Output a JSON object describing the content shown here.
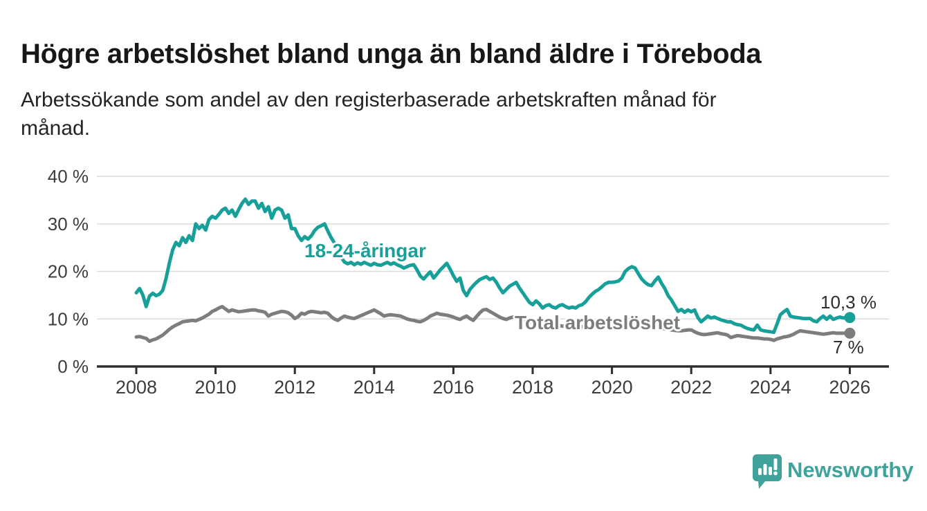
{
  "header": {
    "title": "Högre arbetslöshet bland unga än bland äldre i Töreboda",
    "subtitle_lines": [
      "Arbetssökande som andel av den registerbaserade arbetskraften månad för",
      "månad."
    ]
  },
  "colors": {
    "youth_line": "#17a099",
    "total_line": "#7d7d7d",
    "gridline": "#dcdcdc",
    "axis": "#2d2d2d",
    "tick_text": "#3c3c3c",
    "value_text": "#2d2d2d",
    "logo": "#3fa39c"
  },
  "branding": {
    "logo_text": "Newsworthy",
    "logo_icon": "bar-chart-speech-bubble-icon"
  },
  "chart_data": {
    "type": "line",
    "title": "Högre arbetslöshet bland unga än bland äldre i Töreboda",
    "subtitle": "Arbetssökande som andel av den registerbaserade arbetskraften månad för månad.",
    "x_unit": "month",
    "x_start_year": 2008,
    "x_end_year": 2026,
    "x_tick_years": [
      2008,
      2010,
      2012,
      2014,
      2016,
      2018,
      2020,
      2022,
      2024,
      2026
    ],
    "ylim": [
      0,
      42
    ],
    "grid": "horizontal",
    "legend_position": "inline-labels",
    "y_ticks": [
      {
        "value": 0,
        "label": "0 %"
      },
      {
        "value": 10,
        "label": "10 %"
      },
      {
        "value": 20,
        "label": "20 %"
      },
      {
        "value": 30,
        "label": "30 %"
      },
      {
        "value": 40,
        "label": "40 %"
      }
    ],
    "series": [
      {
        "name": "18-24-åringar",
        "color": "#17a099",
        "end_label": "10,3 %",
        "end_value": 10.3,
        "values": [
          15.5,
          16.4,
          15.0,
          12.6,
          14.8,
          15.4,
          14.9,
          15.2,
          16.0,
          18.5,
          21.7,
          24.5,
          26.1,
          25.4,
          27.1,
          26.1,
          27.5,
          26.5,
          30.0,
          29.0,
          29.7,
          28.7,
          30.9,
          31.6,
          31.2,
          32.0,
          32.9,
          33.3,
          32.2,
          32.9,
          31.6,
          33.0,
          34.3,
          35.2,
          34.1,
          34.8,
          34.8,
          33.3,
          34.3,
          32.6,
          33.6,
          31.2,
          32.9,
          33.3,
          32.9,
          31.2,
          31.9,
          29.0,
          29.0,
          27.5,
          26.5,
          27.3,
          26.8,
          27.5,
          28.6,
          29.3,
          29.6,
          30.0,
          28.5,
          27.1,
          26.0,
          24.5,
          23.0,
          22.0,
          21.6,
          21.9,
          21.4,
          21.8,
          21.5,
          21.9,
          21.6,
          21.3,
          21.7,
          21.4,
          21.3,
          21.6,
          21.9,
          21.5,
          21.8,
          21.4,
          21.1,
          20.7,
          21.0,
          21.3,
          21.4,
          20.3,
          19.0,
          18.4,
          19.2,
          19.9,
          18.6,
          19.4,
          20.3,
          21.0,
          21.7,
          20.5,
          19.1,
          17.9,
          18.6,
          16.0,
          14.9,
          16.2,
          17.0,
          17.7,
          18.3,
          18.6,
          18.9,
          18.3,
          18.6,
          17.7,
          16.5,
          15.5,
          16.2,
          16.9,
          17.3,
          17.7,
          16.5,
          15.5,
          14.5,
          13.5,
          13.0,
          13.8,
          13.2,
          12.3,
          12.8,
          13.0,
          12.5,
          12.3,
          12.8,
          13.0,
          12.6,
          12.3,
          12.5,
          12.3,
          12.8,
          13.0,
          13.6,
          14.5,
          15.2,
          15.8,
          16.2,
          16.8,
          17.4,
          17.7,
          17.7,
          17.8,
          18.0,
          18.6,
          20.0,
          20.6,
          21.0,
          20.7,
          19.5,
          18.4,
          17.7,
          17.2,
          17.0,
          18.0,
          18.8,
          17.5,
          16.4,
          14.9,
          14.0,
          12.8,
          11.6,
          12.0,
          11.4,
          11.9,
          11.5,
          11.9,
          10.3,
          9.4,
          10.0,
          10.6,
          10.2,
          10.4,
          10.1,
          9.8,
          9.6,
          9.4,
          9.4,
          9.0,
          8.8,
          8.7,
          8.3,
          8.0,
          7.8,
          7.7,
          8.7,
          7.7,
          7.5,
          7.4,
          7.3,
          7.2,
          9.0,
          10.9,
          11.5,
          12.0,
          10.6,
          10.4,
          10.3,
          10.2,
          10.1,
          10.1,
          10.1,
          9.6,
          9.4,
          10.1,
          10.6,
          9.9,
          10.6,
          9.9,
          10.2,
          10.4,
          10.2,
          10.3,
          10.3
        ]
      },
      {
        "name": "Total arbetslöshet",
        "color": "#7d7d7d",
        "end_label": "7 %",
        "end_value": 7.0,
        "values": [
          6.2,
          6.3,
          6.1,
          5.9,
          5.3,
          5.6,
          5.8,
          6.2,
          6.6,
          7.2,
          7.8,
          8.3,
          8.7,
          9.0,
          9.4,
          9.5,
          9.6,
          9.7,
          9.6,
          9.9,
          10.2,
          10.6,
          11.0,
          11.6,
          11.9,
          12.3,
          12.6,
          12.1,
          11.6,
          11.9,
          11.7,
          11.5,
          11.6,
          11.7,
          11.8,
          11.9,
          11.9,
          11.7,
          11.6,
          11.4,
          10.6,
          11.0,
          11.2,
          11.4,
          11.6,
          11.5,
          11.3,
          10.8,
          10.1,
          10.5,
          11.2,
          11.0,
          11.4,
          11.6,
          11.5,
          11.4,
          11.3,
          11.4,
          11.2,
          10.5,
          10.0,
          9.7,
          10.2,
          10.6,
          10.4,
          10.2,
          10.1,
          10.4,
          10.7,
          11.0,
          11.3,
          11.6,
          11.9,
          11.5,
          11.1,
          10.6,
          10.8,
          10.9,
          10.8,
          10.7,
          10.6,
          10.3,
          10.0,
          9.8,
          9.7,
          9.5,
          9.4,
          9.7,
          10.1,
          10.6,
          10.9,
          11.2,
          11.0,
          10.9,
          10.8,
          10.6,
          10.4,
          10.1,
          9.9,
          10.3,
          10.6,
          10.1,
          9.7,
          10.5,
          11.3,
          11.9,
          12.0,
          11.6,
          11.2,
          10.8,
          10.4,
          10.1,
          9.9,
          10.2,
          10.4,
          10.3,
          10.1,
          9.9,
          9.7,
          9.5,
          9.3,
          9.2,
          9.1,
          9.0,
          8.9,
          8.8,
          8.8,
          8.7,
          8.6,
          8.5,
          8.5,
          8.4,
          8.4,
          8.3,
          8.3,
          8.4,
          8.5,
          8.6,
          8.7,
          8.8,
          8.9,
          9.0,
          9.1,
          9.2,
          9.3,
          9.4,
          9.6,
          9.8,
          9.9,
          9.9,
          9.8,
          9.7,
          9.5,
          9.3,
          9.1,
          8.9,
          8.7,
          8.5,
          8.3,
          8.1,
          7.9,
          7.8,
          7.7,
          7.6,
          7.5,
          7.5,
          7.6,
          7.7,
          7.7,
          7.3,
          7.0,
          6.8,
          6.7,
          6.8,
          6.9,
          7.0,
          7.1,
          6.9,
          6.8,
          6.6,
          6.1,
          6.3,
          6.5,
          6.4,
          6.3,
          6.2,
          6.1,
          6.0,
          6.0,
          5.9,
          5.8,
          5.8,
          5.7,
          5.5,
          5.8,
          6.0,
          6.2,
          6.3,
          6.5,
          6.8,
          7.2,
          7.5,
          7.4,
          7.3,
          7.2,
          7.1,
          7.0,
          6.9,
          6.8,
          6.9,
          7.0,
          7.1,
          7.0,
          7.0,
          7.0,
          7.0,
          7.0
        ]
      }
    ]
  }
}
